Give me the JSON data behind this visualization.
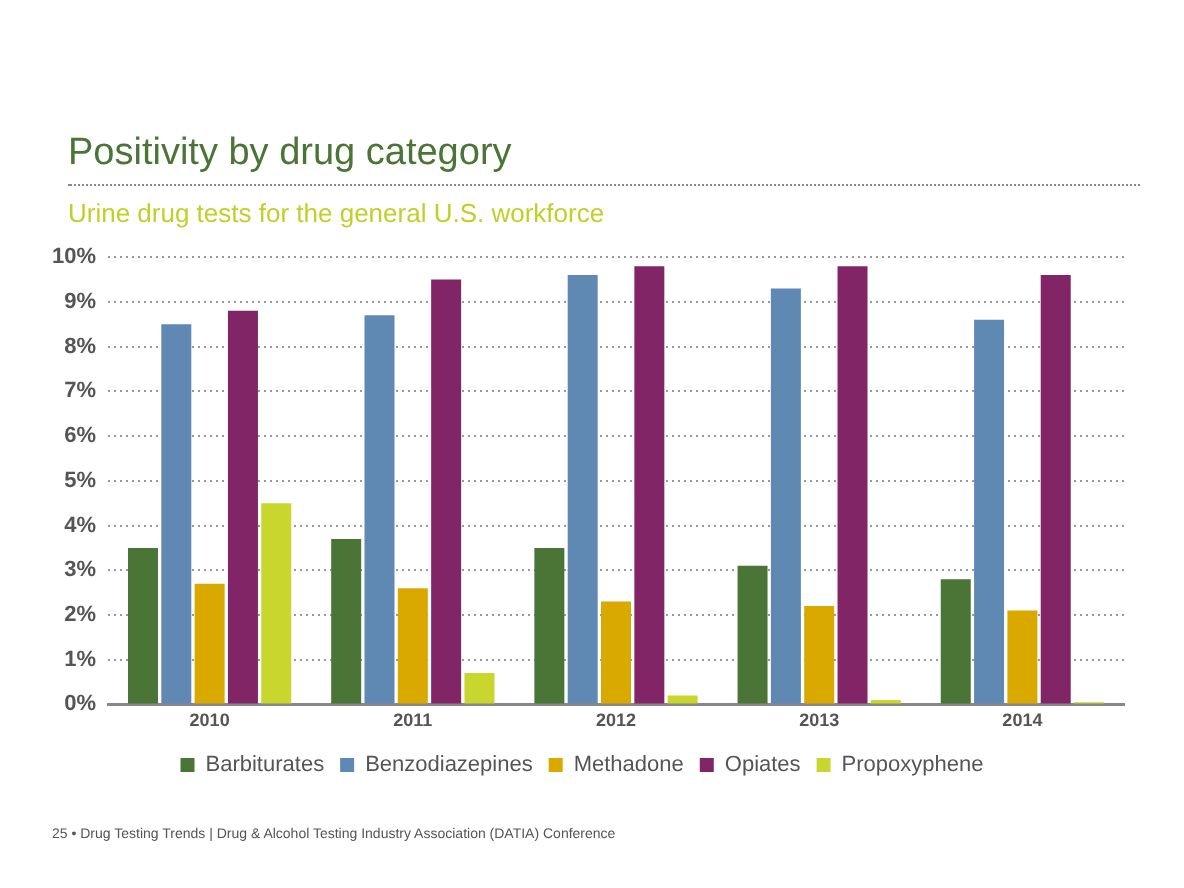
{
  "chart_data": {
    "type": "bar",
    "title": "Positivity by drug category",
    "subtitle": "Urine drug tests for the general U.S. workforce",
    "categories": [
      "2010",
      "2011",
      "2012",
      "2013",
      "2014"
    ],
    "series": [
      {
        "name": "Barbiturates",
        "color": "#4a7536",
        "values": [
          3.5,
          3.7,
          3.5,
          3.1,
          2.8
        ]
      },
      {
        "name": "Benzodiazepines",
        "color": "#5f88b3",
        "values": [
          8.5,
          8.7,
          9.6,
          9.3,
          8.6
        ]
      },
      {
        "name": "Methadone",
        "color": "#d9a900",
        "values": [
          2.7,
          2.6,
          2.3,
          2.2,
          2.1
        ]
      },
      {
        "name": "Opiates",
        "color": "#822566",
        "values": [
          8.8,
          9.5,
          9.8,
          9.8,
          9.6
        ]
      },
      {
        "name": "Propoxyphene",
        "color": "#c8d62e",
        "values": [
          4.5,
          0.7,
          0.2,
          0.1,
          0.05
        ]
      }
    ],
    "ylim": [
      0,
      10
    ],
    "yticks": [
      {
        "value": 0,
        "label": "0%"
      },
      {
        "value": 1,
        "label": "1%"
      },
      {
        "value": 2,
        "label": "2%"
      },
      {
        "value": 3,
        "label": "3%"
      },
      {
        "value": 4,
        "label": "4%"
      },
      {
        "value": 5,
        "label": "5%"
      },
      {
        "value": 6,
        "label": "6%"
      },
      {
        "value": 7,
        "label": "7%"
      },
      {
        "value": 8,
        "label": "8%"
      },
      {
        "value": 9,
        "label": "9%"
      },
      {
        "value": 10,
        "label": "10%"
      }
    ],
    "grid": "y",
    "legend": "bottom",
    "annotations": [
      "25 • Drug Testing Trends  |  Drug & Alcohol Testing Industry Association (DATIA)  Conference"
    ]
  }
}
